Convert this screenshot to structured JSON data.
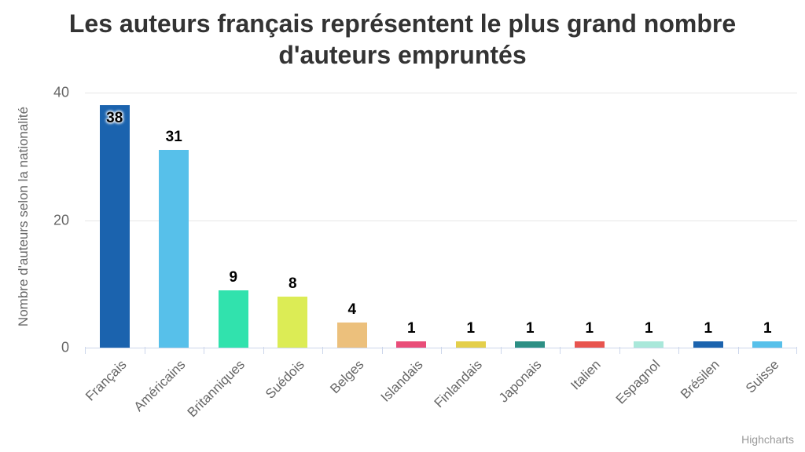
{
  "title": "Les auteurs français représentent le plus grand nombre d'auteurs empruntés",
  "y_axis_title": "Nombre d'auteurs selon la nationalité",
  "credits_label": "Highcharts",
  "colors": {
    "title_text": "#333333",
    "axis_text": "#666666",
    "gridline": "#e6e6e6",
    "axis_line": "#ccd6eb",
    "credits_text": "#999999"
  },
  "chart_data": {
    "type": "bar",
    "title": "Les auteurs français représentent le plus grand nombre d'auteurs empruntés",
    "xlabel": "",
    "ylabel": "Nombre d'auteurs selon la nationalité",
    "categories": [
      "Français",
      "Américains",
      "Britanniques",
      "Suédois",
      "Belges",
      "Islandais",
      "Finlandais",
      "Japonais",
      "Italien",
      "Espagnol",
      "Brésilen",
      "Suisse"
    ],
    "values": [
      38,
      31,
      9,
      8,
      4,
      1,
      1,
      1,
      1,
      1,
      1,
      1
    ],
    "bar_colors": [
      "#1b63ae",
      "#57c0ea",
      "#31e2ad",
      "#dcec55",
      "#ecc07c",
      "#e94d79",
      "#e4cf4b",
      "#2c8f85",
      "#e8544f",
      "#a9e8da",
      "#1b63ae",
      "#57c0ea"
    ],
    "ylim": [
      0,
      40
    ],
    "yticks": [
      0,
      20,
      40
    ],
    "grid": true,
    "legend": "none",
    "data_labels": true
  }
}
